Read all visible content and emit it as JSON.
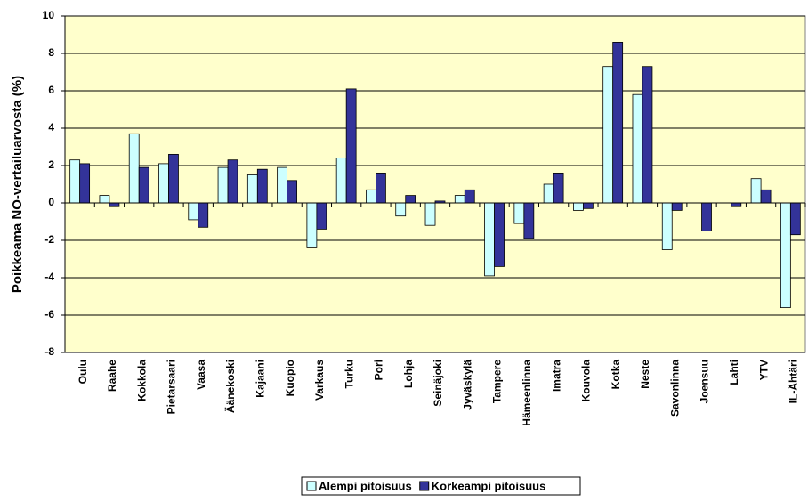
{
  "chart_data": {
    "type": "bar",
    "y_label": "Poikkeama NO-vertailuarvosta (%)",
    "categories": [
      "Oulu",
      "Raahe",
      "Kokkola",
      "Pietarsaari",
      "Vaasa",
      "Äänekoski",
      "Kajaani",
      "Kuopio",
      "Varkaus",
      "Turku",
      "Pori",
      "Lohja",
      "Seinäjoki",
      "Jyväskylä",
      "Tampere",
      "Hämeenlinna",
      "Imatra",
      "Kouvola",
      "Kotka",
      "Neste",
      "Savonlinna",
      "Joensuu",
      "Lahti",
      "YTV",
      "IL-Ähtäri"
    ],
    "series": [
      {
        "name": "Alempi pitoisuus",
        "color": "#ccffff",
        "values": [
          2.3,
          0.4,
          3.7,
          2.1,
          -0.9,
          1.9,
          1.5,
          1.9,
          -2.4,
          2.4,
          0.7,
          -0.7,
          -1.2,
          0.4,
          -3.9,
          -1.1,
          1.0,
          -0.4,
          7.3,
          5.8,
          -2.5,
          null,
          null,
          1.3,
          -5.6
        ]
      },
      {
        "name": "Korkeampi pitoisuus",
        "color": "#333399",
        "values": [
          2.1,
          -0.2,
          1.9,
          2.6,
          -1.3,
          2.3,
          1.8,
          1.2,
          -1.4,
          6.1,
          1.6,
          0.4,
          0.1,
          0.7,
          -3.4,
          -1.9,
          1.6,
          -0.3,
          8.6,
          7.3,
          -0.4,
          -1.5,
          -0.2,
          0.7,
          -1.7
        ]
      }
    ],
    "ylim": [
      -8,
      10
    ],
    "yticks": [
      -8,
      -6,
      -4,
      -2,
      0,
      2,
      4,
      6,
      8,
      10
    ],
    "grid": true,
    "legend": "bottom",
    "background": "#ffffcc"
  }
}
